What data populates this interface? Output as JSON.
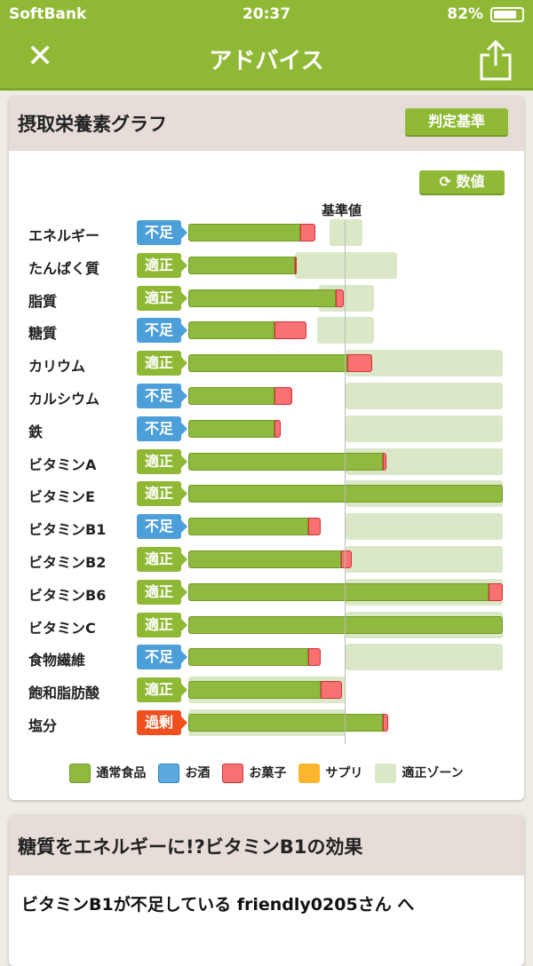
{
  "status": {
    "carrier": "SoftBank",
    "time": "20:37",
    "battery": "82%",
    "battery_level": 0.82
  },
  "nav": {
    "title": "アドバイス",
    "close_icon": "close-icon",
    "share_icon": "share-icon"
  },
  "graph_card": {
    "title": "摂取栄養素グラフ",
    "criteria_button": "判定基準",
    "toggle_button": "数値",
    "reference_label": "基準値"
  },
  "colors": {
    "brand": "#8fb935",
    "food": "#8fb93f",
    "alcohol": "#5ba9de",
    "snack": "#f97272",
    "supplement": "#fbb62e",
    "zone": "#dbe8c7",
    "lack": "#4c9fd8",
    "ok": "#8fb935",
    "excess": "#f0501e"
  },
  "chart_data": {
    "type": "bar",
    "orientation": "horizontal",
    "stacked": true,
    "reference": 100,
    "unit": "% of reference value",
    "xlim": [
      0,
      200
    ],
    "rows": [
      {
        "name": "エネルギー",
        "status": "不足",
        "food": 71,
        "snack": 10,
        "zone": [
          90,
          111
        ]
      },
      {
        "name": "たんぱく質",
        "status": "適正",
        "food": 68,
        "snack": 1,
        "zone": [
          68,
          133
        ]
      },
      {
        "name": "脂質",
        "status": "適正",
        "food": 94,
        "snack": 5,
        "zone": [
          83,
          118
        ]
      },
      {
        "name": "糖質",
        "status": "不足",
        "food": 55,
        "snack": 20,
        "zone": [
          82,
          118
        ]
      },
      {
        "name": "カリウム",
        "status": "適正",
        "food": 101,
        "snack": 16,
        "zone": [
          100,
          200
        ]
      },
      {
        "name": "カルシウム",
        "status": "不足",
        "food": 55,
        "snack": 11,
        "zone": [
          100,
          200
        ]
      },
      {
        "name": "鉄",
        "status": "不足",
        "food": 55,
        "snack": 4,
        "zone": [
          100,
          200
        ]
      },
      {
        "name": "ビタミンA",
        "status": "適正",
        "food": 124,
        "snack": 2,
        "zone": [
          100,
          200
        ]
      },
      {
        "name": "ビタミンE",
        "status": "適正",
        "food": 200,
        "snack": 0,
        "zone": [
          100,
          200
        ]
      },
      {
        "name": "ビタミンB1",
        "status": "不足",
        "food": 76,
        "snack": 8,
        "zone": [
          100,
          200
        ]
      },
      {
        "name": "ビタミンB2",
        "status": "適正",
        "food": 97,
        "snack": 7,
        "zone": [
          100,
          200
        ]
      },
      {
        "name": "ビタミンB6",
        "status": "適正",
        "food": 191,
        "snack": 9,
        "zone": [
          100,
          200
        ]
      },
      {
        "name": "ビタミンC",
        "status": "適正",
        "food": 200,
        "snack": 0,
        "zone": [
          100,
          200
        ]
      },
      {
        "name": "食物繊維",
        "status": "不足",
        "food": 76,
        "snack": 8,
        "zone": [
          100,
          200
        ]
      },
      {
        "name": "飽和脂肪酸",
        "status": "適正",
        "food": 84,
        "snack": 14,
        "zone": [
          0,
          100
        ]
      },
      {
        "name": "塩分",
        "status": "過剰",
        "food": 124,
        "snack": 3,
        "zone": [
          0,
          100
        ]
      }
    ],
    "legend": [
      "通常食品",
      "お酒",
      "お菓子",
      "サプリ",
      "適正ゾーン"
    ]
  },
  "advice_card": {
    "title": "糖質をエネルギーに!?ビタミンB1の効果",
    "body": "ビタミンB1が不足している friendly0205さん へ"
  }
}
